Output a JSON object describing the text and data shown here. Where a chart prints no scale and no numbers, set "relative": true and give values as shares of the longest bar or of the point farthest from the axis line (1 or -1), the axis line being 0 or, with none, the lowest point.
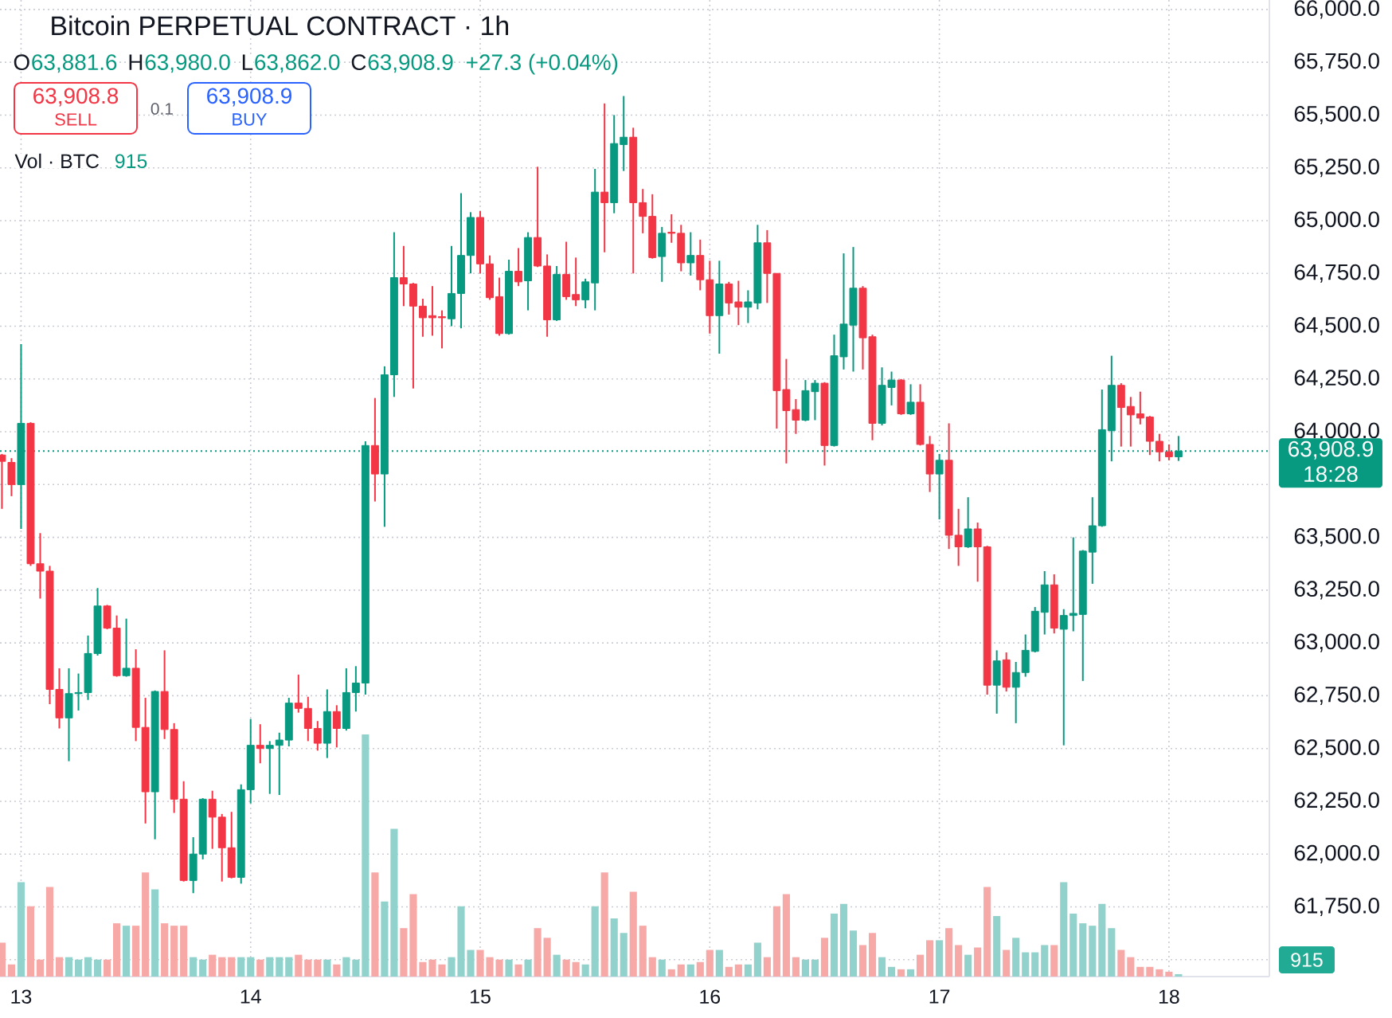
{
  "chart_data": [
    {
      "type": "candlestick",
      "title": "Bitcoin PERPETUAL CONTRACT · 1h",
      "x": [
        12.91667,
        12.95833,
        13,
        13.04167,
        13.08333,
        13.125,
        13.16667,
        13.20833,
        13.25,
        13.29167,
        13.33333,
        13.375,
        13.41667,
        13.45833,
        13.5,
        13.54167,
        13.58333,
        13.625,
        13.66667,
        13.70833,
        13.75,
        13.79167,
        13.83333,
        13.875,
        13.91667,
        13.95833,
        14,
        14.04167,
        14.08333,
        14.125,
        14.16667,
        14.20833,
        14.25,
        14.29167,
        14.33333,
        14.375,
        14.41667,
        14.45833,
        14.5,
        14.54167,
        14.58333,
        14.625,
        14.66667,
        14.70833,
        14.75,
        14.79167,
        14.83333,
        14.875,
        14.91667,
        14.95833,
        15,
        15.04167,
        15.08333,
        15.125,
        15.16667,
        15.20833,
        15.25,
        15.29167,
        15.33333,
        15.375,
        15.41667,
        15.45833,
        15.5,
        15.54167,
        15.58333,
        15.625,
        15.66667,
        15.70833,
        15.75,
        15.79167,
        15.83333,
        15.875,
        15.91667,
        15.95833,
        16,
        16.04167,
        16.08333,
        16.125,
        16.16667,
        16.20833,
        16.25,
        16.29167,
        16.33333,
        16.375,
        16.41667,
        16.45833,
        16.5,
        16.54167,
        16.58333,
        16.625,
        16.66667,
        16.70833,
        16.75,
        16.79167,
        16.83333,
        16.875,
        16.91667,
        16.95833,
        17,
        17.04167,
        17.08333,
        17.125,
        17.16667,
        17.20833,
        17.25,
        17.29167,
        17.33333,
        17.375,
        17.41667,
        17.45833,
        17.5,
        17.54167,
        17.58333,
        17.625,
        17.66667,
        17.70833,
        17.75,
        17.79167,
        17.83333,
        17.875,
        17.91667,
        17.95833,
        18,
        18.04167
      ],
      "ohlc": [
        [
          63890,
          63895,
          63635,
          63860
        ],
        [
          63855,
          63875,
          63695,
          63750
        ],
        [
          63750,
          64415,
          63540,
          64040
        ],
        [
          64040,
          64045,
          63365,
          63375
        ],
        [
          63375,
          63520,
          63210,
          63340
        ],
        [
          63340,
          63365,
          62710,
          62780
        ],
        [
          62780,
          62880,
          62595,
          62645
        ],
        [
          62645,
          62880,
          62440,
          62760
        ],
        [
          62760,
          62855,
          62680,
          62765
        ],
        [
          62765,
          63035,
          62730,
          62950
        ],
        [
          62950,
          63260,
          62940,
          63175
        ],
        [
          63175,
          63180,
          63065,
          63070
        ],
        [
          63070,
          63130,
          62840,
          62845
        ],
        [
          62845,
          63115,
          62840,
          62880
        ],
        [
          62880,
          62970,
          62535,
          62600
        ],
        [
          62600,
          62740,
          62145,
          62295
        ],
        [
          62295,
          62775,
          62070,
          62770
        ],
        [
          62770,
          62965,
          62545,
          62590
        ],
        [
          62590,
          62620,
          62195,
          62260
        ],
        [
          62260,
          62345,
          61870,
          61875
        ],
        [
          61875,
          62080,
          61815,
          62000
        ],
        [
          62000,
          62265,
          61975,
          62260
        ],
        [
          62260,
          62300,
          62025,
          62175
        ],
        [
          62175,
          62190,
          61870,
          62030
        ],
        [
          62030,
          62200,
          61885,
          61890
        ],
        [
          61890,
          62330,
          61860,
          62305
        ],
        [
          62305,
          62640,
          62240,
          62515
        ],
        [
          62515,
          62615,
          62430,
          62500
        ],
        [
          62500,
          62535,
          62285,
          62515
        ],
        [
          62515,
          62575,
          62280,
          62540
        ],
        [
          62540,
          62740,
          62510,
          62715
        ],
        [
          62715,
          62850,
          62670,
          62690
        ],
        [
          62690,
          62745,
          62535,
          62595
        ],
        [
          62595,
          62630,
          62490,
          62525
        ],
        [
          62525,
          62780,
          62455,
          62675
        ],
        [
          62675,
          62705,
          62505,
          62595
        ],
        [
          62595,
          62880,
          62585,
          62765
        ],
        [
          62765,
          62890,
          62675,
          62810
        ],
        [
          62810,
          63955,
          62755,
          63935
        ],
        [
          63935,
          64160,
          63670,
          63800
        ],
        [
          63800,
          64310,
          63550,
          64270
        ],
        [
          64270,
          64945,
          64165,
          64730
        ],
        [
          64730,
          64880,
          64595,
          64700
        ],
        [
          64700,
          64705,
          64205,
          64595
        ],
        [
          64595,
          64630,
          64450,
          64540
        ],
        [
          64550,
          64690,
          64455,
          64540
        ],
        [
          64545,
          64575,
          64395,
          64540
        ],
        [
          64535,
          64880,
          64500,
          64655
        ],
        [
          64655,
          65130,
          64490,
          64835
        ],
        [
          64835,
          65040,
          64750,
          65015
        ],
        [
          65015,
          65045,
          64750,
          64795
        ],
        [
          64795,
          64835,
          64625,
          64635
        ],
        [
          64640,
          64730,
          64455,
          64465
        ],
        [
          64465,
          64815,
          64460,
          64760
        ],
        [
          64760,
          64870,
          64690,
          64710
        ],
        [
          64715,
          64945,
          64575,
          64920
        ],
        [
          64920,
          65255,
          64780,
          64785
        ],
        [
          64785,
          64840,
          64450,
          64530
        ],
        [
          64530,
          64785,
          64525,
          64745
        ],
        [
          64745,
          64900,
          64625,
          64640
        ],
        [
          64650,
          64825,
          64595,
          64625
        ],
        [
          64625,
          64725,
          64585,
          64710
        ],
        [
          64705,
          65245,
          64575,
          65135
        ],
        [
          65135,
          65555,
          64850,
          65085
        ],
        [
          65085,
          65500,
          65035,
          65365
        ],
        [
          65360,
          65590,
          65235,
          65395
        ],
        [
          65395,
          65440,
          64750,
          65085
        ],
        [
          65085,
          65150,
          64940,
          65020
        ],
        [
          65020,
          65125,
          64820,
          64825
        ],
        [
          64830,
          64970,
          64710,
          64940
        ],
        [
          64945,
          65030,
          64895,
          64940
        ],
        [
          64940,
          64980,
          64760,
          64800
        ],
        [
          64800,
          64945,
          64740,
          64835
        ],
        [
          64835,
          64910,
          64670,
          64720
        ],
        [
          64720,
          64810,
          64465,
          64550
        ],
        [
          64550,
          64810,
          64370,
          64700
        ],
        [
          64700,
          64710,
          64555,
          64610
        ],
        [
          64615,
          64715,
          64505,
          64590
        ],
        [
          64590,
          64670,
          64515,
          64615
        ],
        [
          64610,
          64980,
          64580,
          64895
        ],
        [
          64895,
          64955,
          64610,
          64750
        ],
        [
          64750,
          64750,
          64015,
          64195
        ],
        [
          64200,
          64345,
          63850,
          64100
        ],
        [
          64105,
          64155,
          63990,
          64055
        ],
        [
          64055,
          64245,
          64050,
          64195
        ],
        [
          64190,
          64245,
          64055,
          64230
        ],
        [
          64230,
          64235,
          63840,
          63935
        ],
        [
          63935,
          64460,
          63930,
          64360
        ],
        [
          64355,
          64845,
          64295,
          64510
        ],
        [
          64505,
          64875,
          64285,
          64680
        ],
        [
          64680,
          64690,
          64295,
          64445
        ],
        [
          64450,
          64460,
          63960,
          64040
        ],
        [
          64040,
          64305,
          64030,
          64220
        ],
        [
          64210,
          64285,
          64125,
          64245
        ],
        [
          64245,
          64250,
          64080,
          64085
        ],
        [
          64085,
          64225,
          64080,
          64140
        ],
        [
          64140,
          64225,
          63935,
          63940
        ],
        [
          63940,
          63980,
          63715,
          63800
        ],
        [
          63800,
          63895,
          63585,
          63865
        ],
        [
          63865,
          64040,
          63445,
          63510
        ],
        [
          63510,
          63635,
          63365,
          63455
        ],
        [
          63455,
          63690,
          63450,
          63540
        ],
        [
          63540,
          63570,
          63290,
          63455
        ],
        [
          63455,
          63460,
          62755,
          62800
        ],
        [
          62800,
          62965,
          62665,
          62915
        ],
        [
          62920,
          62955,
          62770,
          62790
        ],
        [
          62790,
          62910,
          62620,
          62860
        ],
        [
          62860,
          63040,
          62840,
          62965
        ],
        [
          62960,
          63170,
          62955,
          63150
        ],
        [
          63145,
          63340,
          63040,
          63275
        ],
        [
          63275,
          63325,
          63045,
          63070
        ],
        [
          63065,
          63160,
          62515,
          63130
        ],
        [
          63130,
          63500,
          63055,
          63140
        ],
        [
          63135,
          63440,
          62820,
          63435
        ],
        [
          63430,
          63690,
          63280,
          63555
        ],
        [
          63555,
          64200,
          63550,
          64010
        ],
        [
          64005,
          64360,
          63860,
          64220
        ],
        [
          64220,
          64230,
          63930,
          64115
        ],
        [
          64120,
          64165,
          63930,
          64080
        ],
        [
          64085,
          64190,
          64035,
          64065
        ],
        [
          64070,
          64075,
          63890,
          63955
        ],
        [
          63955,
          63990,
          63860,
          63905
        ],
        [
          63905,
          63940,
          63865,
          63881.6
        ],
        [
          63881.6,
          63980.0,
          63862.0,
          63908.9
        ]
      ],
      "colors": [
        "#f23645",
        "#f23645",
        "#089981",
        "#f23645",
        "#f23645",
        "#f23645",
        "#f23645",
        "#089981",
        "#089981",
        "#089981",
        "#089981",
        "#f23645",
        "#f23645",
        "#089981",
        "#f23645",
        "#f23645",
        "#089981",
        "#f23645",
        "#f23645",
        "#f23645",
        "#089981",
        "#089981",
        "#f23645",
        "#f23645",
        "#f23645",
        "#089981",
        "#089981",
        "#f23645",
        "#089981",
        "#089981",
        "#089981",
        "#f23645",
        "#f23645",
        "#f23645",
        "#089981",
        "#f23645",
        "#089981",
        "#089981",
        "#089981",
        "#f23645",
        "#089981",
        "#089981",
        "#f23645",
        "#f23645",
        "#f23645",
        "#f23645",
        "#f23645",
        "#089981",
        "#089981",
        "#089981",
        "#f23645",
        "#f23645",
        "#f23645",
        "#089981",
        "#f23645",
        "#089981",
        "#f23645",
        "#f23645",
        "#089981",
        "#f23645",
        "#f23645",
        "#089981",
        "#089981",
        "#f23645",
        "#089981",
        "#089981",
        "#f23645",
        "#f23645",
        "#f23645",
        "#089981",
        "#f23645",
        "#f23645",
        "#089981",
        "#f23645",
        "#f23645",
        "#089981",
        "#f23645",
        "#f23645",
        "#089981",
        "#089981",
        "#f23645",
        "#f23645",
        "#f23645",
        "#f23645",
        "#089981",
        "#089981",
        "#f23645",
        "#089981",
        "#089981",
        "#089981",
        "#f23645",
        "#f23645",
        "#089981",
        "#089981",
        "#f23645",
        "#089981",
        "#f23645",
        "#f23645",
        "#089981",
        "#f23645",
        "#f23645",
        "#089981",
        "#f23645",
        "#f23645",
        "#089981",
        "#f23645",
        "#089981",
        "#089981",
        "#089981",
        "#089981",
        "#f23645",
        "#089981",
        "#089981",
        "#089981",
        "#089981",
        "#089981",
        "#089981",
        "#f23645",
        "#f23645",
        "#f23645",
        "#f23645",
        "#f23645",
        "#f23645",
        "#089981"
      ],
      "xlim": [
        12.90833,
        18.4375
      ],
      "xticks": [
        13,
        14,
        15,
        16,
        17,
        18
      ],
      "ylim": [
        61420,
        66045
      ],
      "yticks": [
        {
          "value": 61500,
          "label": null
        },
        {
          "value": 61750,
          "label": "61,750.0"
        },
        {
          "value": 62000,
          "label": "62,000.0"
        },
        {
          "value": 62250,
          "label": "62,250.0"
        },
        {
          "value": 62500,
          "label": "62,500.0"
        },
        {
          "value": 62750,
          "label": "62,750.0"
        },
        {
          "value": 63000,
          "label": "63,000.0"
        },
        {
          "value": 63250,
          "label": "63,250.0"
        },
        {
          "value": 63500,
          "label": "63,500.0"
        },
        {
          "value": 63750,
          "label": null
        },
        {
          "value": 64000,
          "label": "64,000.0"
        },
        {
          "value": 64250,
          "label": "64,250.0"
        },
        {
          "value": 64500,
          "label": "64,500.0"
        },
        {
          "value": 64750,
          "label": "64,750.0"
        },
        {
          "value": 65000,
          "label": "65,000.0"
        },
        {
          "value": 65250,
          "label": "65,250.0"
        },
        {
          "value": 65500,
          "label": "65,500.0"
        },
        {
          "value": 65750,
          "label": "65,750.0"
        },
        {
          "value": 66000,
          "label": "66,000.0"
        }
      ],
      "tick_labels": "y",
      "grid": true,
      "ref_lines": [
        {
          "axis": "y",
          "value": 63908.9,
          "label": "63,908.9",
          "color": "#089981",
          "line_style": "dotted"
        }
      ],
      "annotations": [
        "O",
        "63,881.6",
        "H",
        "63,980.0",
        "L",
        "63,862.0",
        "C",
        "63,908.9",
        "+27.3 (+0.04%)",
        "63,908.8",
        "SELL",
        "0.1",
        "63,908.9",
        "BUY",
        "18:28"
      ]
    },
    {
      "type": "bar",
      "title": "Vol · BTC",
      "relative": true,
      "x": [
        12.91667,
        12.95833,
        13,
        13.04167,
        13.08333,
        13.125,
        13.16667,
        13.20833,
        13.25,
        13.29167,
        13.33333,
        13.375,
        13.41667,
        13.45833,
        13.5,
        13.54167,
        13.58333,
        13.625,
        13.66667,
        13.70833,
        13.75,
        13.79167,
        13.83333,
        13.875,
        13.91667,
        13.95833,
        14,
        14.04167,
        14.08333,
        14.125,
        14.16667,
        14.20833,
        14.25,
        14.29167,
        14.33333,
        14.375,
        14.41667,
        14.45833,
        14.5,
        14.54167,
        14.58333,
        14.625,
        14.66667,
        14.70833,
        14.75,
        14.79167,
        14.83333,
        14.875,
        14.91667,
        14.95833,
        15,
        15.04167,
        15.08333,
        15.125,
        15.16667,
        15.20833,
        15.25,
        15.29167,
        15.33333,
        15.375,
        15.41667,
        15.45833,
        15.5,
        15.54167,
        15.58333,
        15.625,
        15.66667,
        15.70833,
        15.75,
        15.79167,
        15.83333,
        15.875,
        15.91667,
        15.95833,
        16,
        16.04167,
        16.08333,
        16.125,
        16.16667,
        16.20833,
        16.25,
        16.29167,
        16.33333,
        16.375,
        16.41667,
        16.45833,
        16.5,
        16.54167,
        16.58333,
        16.625,
        16.66667,
        16.70833,
        16.75,
        16.79167,
        16.83333,
        16.875,
        16.91667,
        16.95833,
        17,
        17.04167,
        17.08333,
        17.125,
        17.16667,
        17.20833,
        17.25,
        17.29167,
        17.33333,
        17.375,
        17.41667,
        17.45833,
        17.5,
        17.54167,
        17.58333,
        17.625,
        17.66667,
        17.70833,
        17.75,
        17.79167,
        17.83333,
        17.875,
        17.91667,
        17.95833,
        18,
        18.04167
      ],
      "values": [
        0.14,
        0.05,
        0.39,
        0.29,
        0.07,
        0.37,
        0.08,
        0.08,
        0.07,
        0.08,
        0.07,
        0.07,
        0.22,
        0.21,
        0.21,
        0.43,
        0.36,
        0.22,
        0.21,
        0.21,
        0.08,
        0.07,
        0.09,
        0.08,
        0.08,
        0.08,
        0.08,
        0.07,
        0.08,
        0.08,
        0.08,
        0.09,
        0.07,
        0.07,
        0.07,
        0.05,
        0.08,
        0.07,
        1,
        0.43,
        0.31,
        0.61,
        0.2,
        0.34,
        0.06,
        0.07,
        0.05,
        0.08,
        0.29,
        0.11,
        0.11,
        0.08,
        0.07,
        0.07,
        0.05,
        0.07,
        0.2,
        0.16,
        0.09,
        0.07,
        0.06,
        0.05,
        0.29,
        0.43,
        0.24,
        0.18,
        0.35,
        0.21,
        0.08,
        0.07,
        0.03,
        0.05,
        0.05,
        0.06,
        0.11,
        0.11,
        0.04,
        0.05,
        0.05,
        0.14,
        0.08,
        0.29,
        0.34,
        0.08,
        0.07,
        0.07,
        0.16,
        0.26,
        0.3,
        0.19,
        0.13,
        0.18,
        0.08,
        0.04,
        0.03,
        0.03,
        0.09,
        0.15,
        0.15,
        0.2,
        0.13,
        0.09,
        0.12,
        0.37,
        0.25,
        0.11,
        0.16,
        0.1,
        0.1,
        0.13,
        0.13,
        0.39,
        0.26,
        0.22,
        0.21,
        0.3,
        0.2,
        0.11,
        0.08,
        0.04,
        0.04,
        0.03,
        0.02,
        0.01
      ],
      "colors": [
        "#f7a9a7",
        "#f7a9a7",
        "#92d2cc",
        "#f7a9a7",
        "#f7a9a7",
        "#f7a9a7",
        "#f7a9a7",
        "#92d2cc",
        "#92d2cc",
        "#92d2cc",
        "#92d2cc",
        "#f7a9a7",
        "#f7a9a7",
        "#92d2cc",
        "#f7a9a7",
        "#f7a9a7",
        "#92d2cc",
        "#f7a9a7",
        "#f7a9a7",
        "#f7a9a7",
        "#92d2cc",
        "#92d2cc",
        "#f7a9a7",
        "#f7a9a7",
        "#f7a9a7",
        "#92d2cc",
        "#92d2cc",
        "#f7a9a7",
        "#92d2cc",
        "#92d2cc",
        "#92d2cc",
        "#f7a9a7",
        "#f7a9a7",
        "#f7a9a7",
        "#92d2cc",
        "#f7a9a7",
        "#92d2cc",
        "#92d2cc",
        "#92d2cc",
        "#f7a9a7",
        "#92d2cc",
        "#92d2cc",
        "#f7a9a7",
        "#f7a9a7",
        "#f7a9a7",
        "#f7a9a7",
        "#f7a9a7",
        "#92d2cc",
        "#92d2cc",
        "#92d2cc",
        "#f7a9a7",
        "#f7a9a7",
        "#f7a9a7",
        "#92d2cc",
        "#f7a9a7",
        "#92d2cc",
        "#f7a9a7",
        "#f7a9a7",
        "#92d2cc",
        "#f7a9a7",
        "#f7a9a7",
        "#92d2cc",
        "#92d2cc",
        "#f7a9a7",
        "#92d2cc",
        "#92d2cc",
        "#f7a9a7",
        "#f7a9a7",
        "#f7a9a7",
        "#92d2cc",
        "#f7a9a7",
        "#f7a9a7",
        "#92d2cc",
        "#f7a9a7",
        "#f7a9a7",
        "#92d2cc",
        "#f7a9a7",
        "#f7a9a7",
        "#92d2cc",
        "#92d2cc",
        "#f7a9a7",
        "#f7a9a7",
        "#f7a9a7",
        "#f7a9a7",
        "#92d2cc",
        "#92d2cc",
        "#f7a9a7",
        "#92d2cc",
        "#92d2cc",
        "#92d2cc",
        "#f7a9a7",
        "#f7a9a7",
        "#92d2cc",
        "#92d2cc",
        "#f7a9a7",
        "#92d2cc",
        "#f7a9a7",
        "#f7a9a7",
        "#92d2cc",
        "#f7a9a7",
        "#f7a9a7",
        "#92d2cc",
        "#f7a9a7",
        "#f7a9a7",
        "#92d2cc",
        "#f7a9a7",
        "#92d2cc",
        "#92d2cc",
        "#92d2cc",
        "#92d2cc",
        "#f7a9a7",
        "#92d2cc",
        "#92d2cc",
        "#92d2cc",
        "#92d2cc",
        "#92d2cc",
        "#92d2cc",
        "#f7a9a7",
        "#f7a9a7",
        "#f7a9a7",
        "#f7a9a7",
        "#f7a9a7",
        "#f7a9a7",
        "#92d2cc"
      ],
      "xlim": [
        12.90833,
        18.4375
      ],
      "xticks": [
        13,
        14,
        15,
        16,
        17,
        18
      ],
      "annotations": [
        "915",
        "915"
      ]
    }
  ]
}
